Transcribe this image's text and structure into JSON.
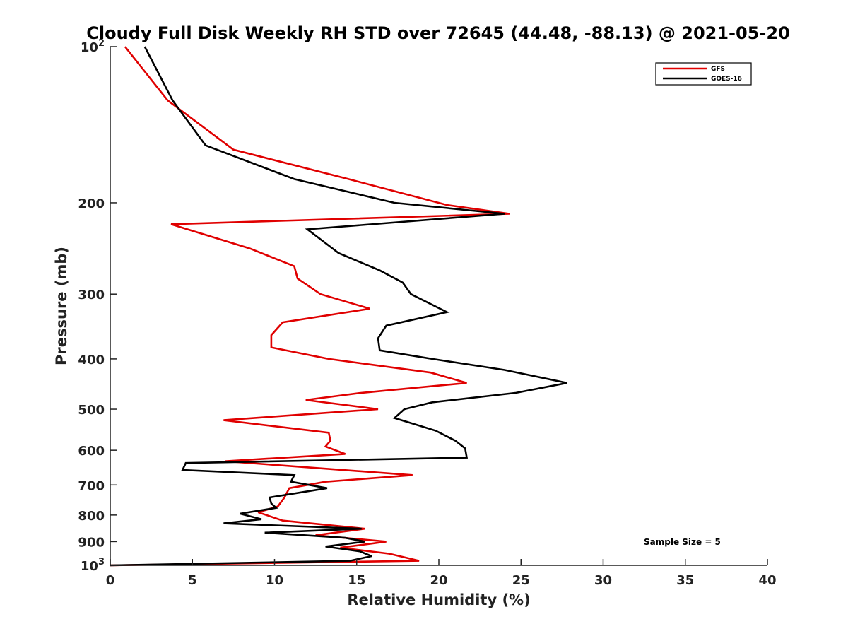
{
  "chart_data": {
    "type": "line",
    "title": "Cloudy Full Disk Weekly RH STD over 72645 (44.48, -88.13) @ 2021-05-20",
    "xlabel": "Relative Humidity (%)",
    "ylabel": "Pressure (mb)",
    "xlim": [
      0,
      40
    ],
    "ylim": [
      100,
      1000
    ],
    "y_scale": "log",
    "y_reversed": true,
    "x_ticks": [
      0,
      5,
      10,
      15,
      20,
      25,
      30,
      35,
      40
    ],
    "x_tick_labels": [
      "0",
      "5",
      "10",
      "15",
      "20",
      "25",
      "30",
      "35",
      "40"
    ],
    "y_ticks": [
      100,
      200,
      300,
      400,
      500,
      600,
      700,
      800,
      900,
      1000
    ],
    "y_tick_labels": [
      "10²",
      "200",
      "300",
      "400",
      "500",
      "600",
      "700",
      "800",
      "900",
      "10³"
    ],
    "grid": false,
    "legend_position": "top-right",
    "annotation": "Sample Size = 5",
    "series": [
      {
        "name": "GFS",
        "color": "#e00000",
        "x": [
          0.9,
          3.5,
          7.5,
          14.5,
          20.5,
          24.3,
          3.7,
          8.5,
          11.2,
          11.4,
          12.8,
          15.8,
          10.5,
          9.8,
          9.8,
          13.3,
          19.5,
          21.7,
          15.3,
          11.9,
          16.3,
          6.9,
          13.3,
          13.4,
          13.1,
          14.3,
          7.0,
          18.4,
          13.1,
          10.9,
          10.6,
          10.2,
          9.0,
          10.5,
          15.5,
          12.5,
          16.8,
          14.0,
          17.0,
          18.8,
          0.0
        ],
        "y": [
          100,
          127,
          158,
          180,
          202,
          210,
          220,
          245,
          265,
          280,
          300,
          320,
          340,
          360,
          380,
          400,
          425,
          445,
          465,
          480,
          500,
          525,
          555,
          575,
          590,
          610,
          630,
          670,
          690,
          710,
          740,
          770,
          790,
          820,
          850,
          875,
          900,
          925,
          950,
          980,
          1000
        ]
      },
      {
        "name": "GOES-16",
        "color": "#000000",
        "x": [
          2.1,
          3.8,
          5.8,
          11.2,
          17.3,
          24.0,
          12.0,
          13.9,
          16.4,
          17.8,
          18.3,
          20.5,
          16.8,
          16.3,
          16.4,
          19.6,
          24.0,
          27.8,
          24.7,
          19.6,
          17.9,
          17.3,
          19.8,
          21.0,
          21.6,
          21.7,
          4.6,
          4.4,
          11.2,
          11.0,
          13.2,
          9.7,
          9.8,
          10.1,
          7.9,
          9.2,
          6.9,
          15.3,
          9.4,
          14.3,
          15.5,
          13.1,
          15.2,
          15.9,
          14.6,
          0.0
        ],
        "y": [
          100,
          127,
          155,
          180,
          200,
          210,
          225,
          250,
          270,
          285,
          300,
          325,
          345,
          365,
          385,
          400,
          420,
          445,
          465,
          485,
          500,
          520,
          550,
          575,
          595,
          620,
          635,
          655,
          670,
          690,
          710,
          740,
          760,
          775,
          795,
          815,
          830,
          850,
          865,
          885,
          900,
          920,
          940,
          960,
          980,
          1000
        ]
      }
    ]
  }
}
